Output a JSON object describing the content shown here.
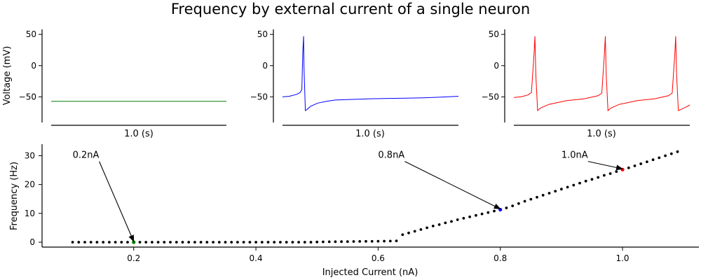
{
  "chart_data": [
    {
      "type": "line",
      "title": "",
      "ylabel": "Voltage (mV)",
      "xlabel": "1.0 (s)",
      "ylim": [
        -91,
        58
      ],
      "xlim": [
        0,
        1.0
      ],
      "yticks": [
        50,
        0,
        -50
      ],
      "color": "#008000",
      "x": [
        0,
        1.0
      ],
      "series": [
        {
          "values": [
            -57,
            -57
          ]
        }
      ]
    },
    {
      "type": "line",
      "title": "",
      "ylabel": "",
      "xlabel": "1.0 (s)",
      "ylim": [
        -91,
        58
      ],
      "xlim": [
        0,
        1.0
      ],
      "yticks": [
        50,
        0,
        -50
      ],
      "color": "#0000ff",
      "x": [
        0,
        0.04,
        0.08,
        0.1,
        0.11,
        0.115,
        0.12,
        0.122,
        0.13,
        0.14,
        0.16,
        0.2,
        0.25,
        0.3,
        0.4,
        0.5,
        0.6,
        0.7,
        0.8,
        0.9,
        1.0
      ],
      "series": [
        {
          "values": [
            -50,
            -49,
            -46,
            -43,
            -38,
            20,
            47,
            0,
            -72,
            -70,
            -65,
            -60,
            -57,
            -55,
            -54,
            -53,
            -52.5,
            -52,
            -51.5,
            -50.5,
            -49
          ]
        }
      ]
    },
    {
      "type": "line",
      "title": "",
      "ylabel": "",
      "xlabel": "1.0 (s)",
      "ylim": [
        -91,
        58
      ],
      "xlim": [
        0,
        1.0
      ],
      "yticks": [
        50,
        0,
        -50
      ],
      "color": "#ff0000",
      "x": [
        0,
        0.04,
        0.08,
        0.1,
        0.115,
        0.12,
        0.125,
        0.135,
        0.15,
        0.2,
        0.3,
        0.4,
        0.48,
        0.5,
        0.515,
        0.52,
        0.525,
        0.535,
        0.55,
        0.6,
        0.7,
        0.8,
        0.88,
        0.9,
        0.915,
        0.92,
        0.925,
        0.935,
        0.95,
        0.98,
        1.0
      ],
      "series": [
        {
          "values": [
            -51,
            -50,
            -47,
            -43,
            20,
            47,
            -15,
            -72,
            -68,
            -62,
            -56,
            -53,
            -48,
            -44,
            20,
            47,
            -15,
            -72,
            -68,
            -62,
            -56,
            -53,
            -48,
            -44,
            20,
            47,
            -15,
            -72,
            -70,
            -66,
            -63
          ]
        }
      ]
    },
    {
      "type": "scatter",
      "title": "Frequency by external current of a single neuron",
      "xlabel": "Injected Current (nA)",
      "ylabel": "Frequency (Hz)",
      "xlim": [
        0.05,
        1.125
      ],
      "ylim": [
        -1.7,
        34
      ],
      "xticks": [
        0.2,
        0.4,
        0.6,
        0.8,
        1.0
      ],
      "xtick_labels": [
        "0.2",
        "0.4",
        "0.6",
        "0.8",
        "1.0"
      ],
      "yticks": [
        0,
        10,
        20,
        30
      ],
      "x_start": 0.1,
      "x_step": 0.01,
      "values": [
        0,
        0,
        0,
        0,
        0,
        0,
        0,
        0,
        0,
        0,
        0,
        0,
        0,
        0,
        0,
        0,
        0,
        0,
        0,
        0,
        0,
        0,
        0,
        0,
        0,
        0,
        0,
        0,
        0,
        0,
        0,
        0,
        0,
        0,
        0,
        0,
        0,
        0,
        0,
        0,
        0.08,
        0.12,
        0.15,
        0.18,
        0.2,
        0.22,
        0.24,
        0.26,
        0.28,
        0.3,
        0.33,
        0.36,
        0.4,
        0.45,
        2.6,
        3.2,
        3.8,
        4.4,
        5.0,
        5.6,
        6.1,
        6.7,
        7.2,
        7.8,
        8.3,
        8.8,
        9.3,
        9.8,
        10.3,
        10.8,
        11.3,
        11.9,
        12.6,
        13.4,
        14.2,
        14.9,
        15.6,
        16.3,
        17.0,
        17.7,
        18.4,
        19.1,
        19.8,
        20.5,
        21.2,
        21.8,
        22.5,
        23.2,
        23.8,
        24.5,
        25.2,
        25.8,
        26.5,
        27.2,
        27.9,
        28.6,
        29.3,
        30.0,
        30.7,
        31.4
      ],
      "highlights": [
        {
          "x": 0.2,
          "y": 0,
          "color": "#008000",
          "label": "0.2nA",
          "text_x": 0.1,
          "text_y": 30.2
        },
        {
          "x": 0.8,
          "y": 11.3,
          "color": "#0000ff",
          "label": "0.8nA",
          "text_x": 0.6,
          "text_y": 30.2
        },
        {
          "x": 1.0,
          "y": 25.2,
          "color": "#ff0000",
          "label": "1.0nA",
          "text_x": 0.9,
          "text_y": 30.2
        }
      ]
    }
  ]
}
